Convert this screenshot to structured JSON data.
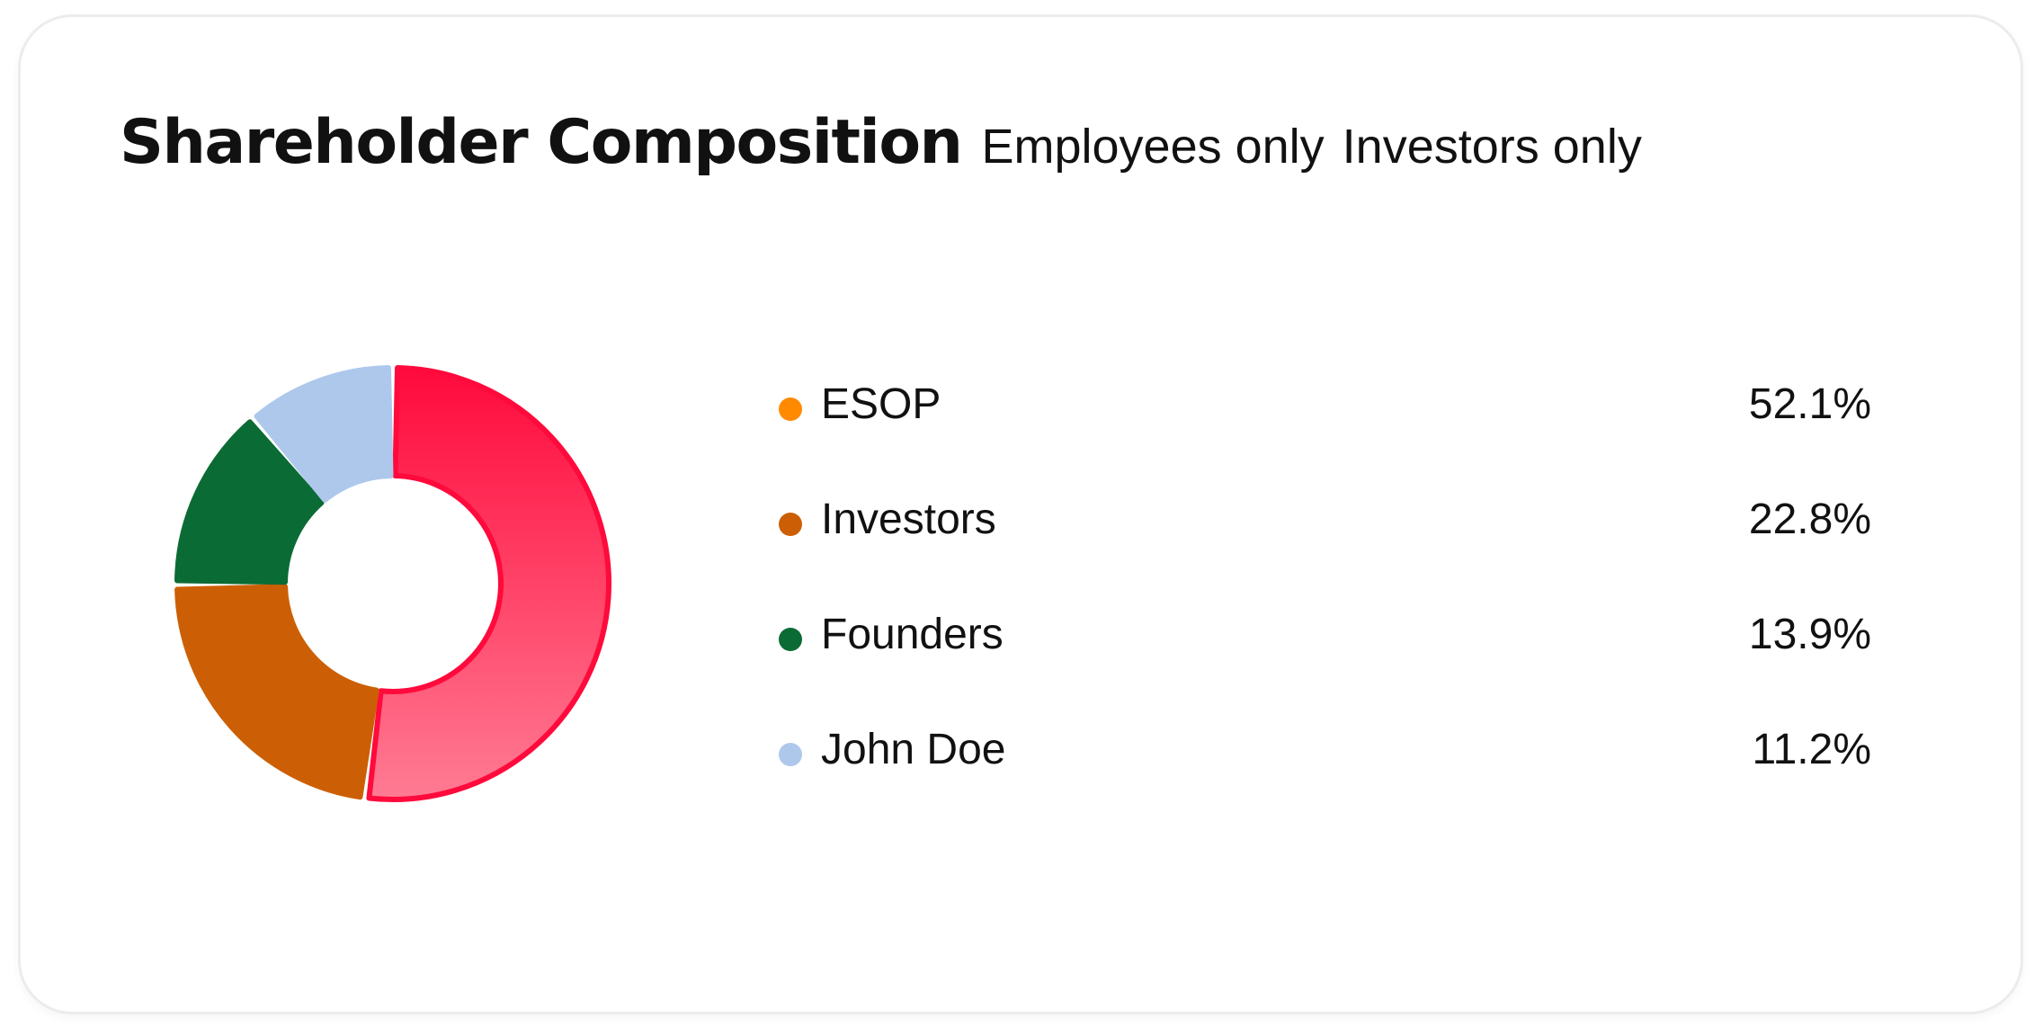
{
  "card": {
    "title": "Shareholder Composition",
    "filters": [
      "Employees only",
      "Investors only"
    ]
  },
  "chart_data": {
    "type": "pie",
    "variant": "donut",
    "title": "Shareholder Composition",
    "categories": [
      "ESOP",
      "Investors",
      "Founders",
      "John Doe"
    ],
    "values": [
      52.1,
      22.8,
      13.9,
      11.2
    ],
    "value_labels": [
      "52.1%",
      "22.8%",
      "13.9%",
      "11.2%"
    ],
    "unit": "%",
    "legend_colors": [
      "#ff8a00",
      "#cc5f05",
      "#0b6b35",
      "#aec8ec"
    ],
    "slice_colors": [
      "#ff0a3c",
      "#cc5f05",
      "#0b6b35",
      "#aec8ec"
    ],
    "esop_gradient": [
      "#ff0a3c",
      "#ff7b93"
    ],
    "legend_position": "right"
  }
}
